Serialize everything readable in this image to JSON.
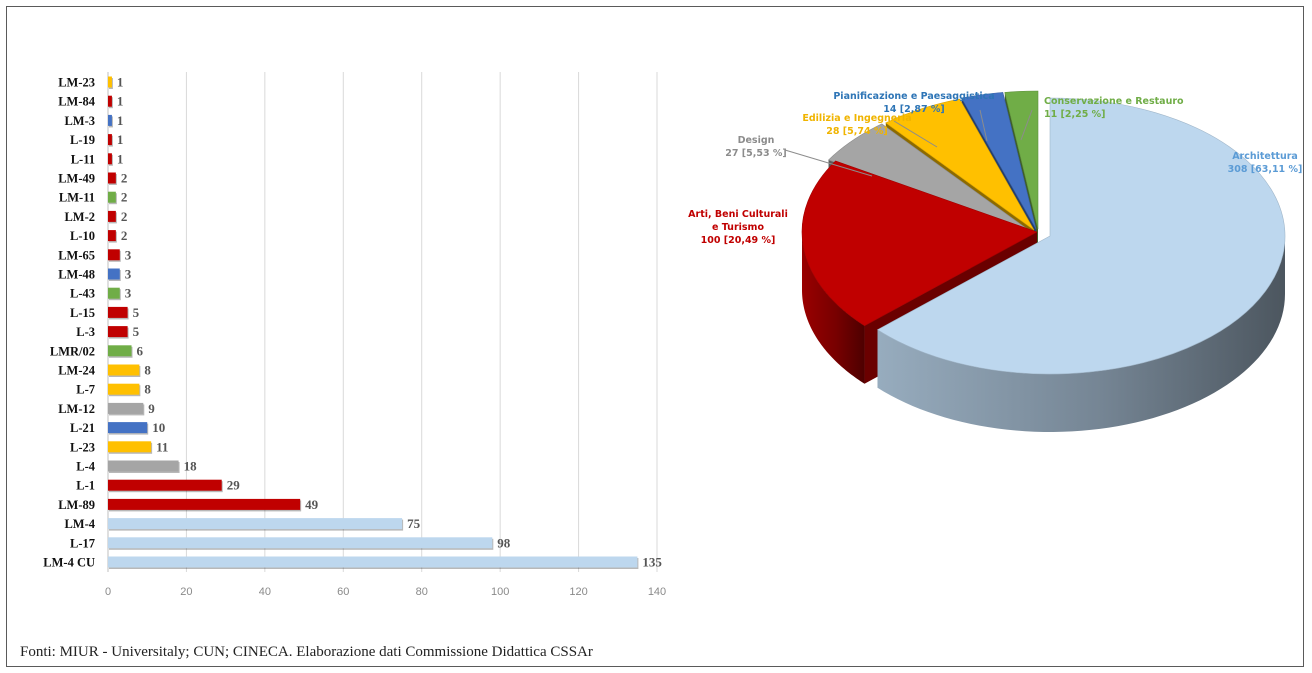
{
  "source_note": "Fonti: MIUR - Universitaly; CUN; CINECA. Elaborazione dati Commissione Didattica CSSAr",
  "colors": {
    "architettura": "#bdd7ee",
    "arti": "#c00000",
    "design": "#a5a5a5",
    "edilizia": "#ffc000",
    "pianificazione": "#4472c4",
    "conservazione": "#70ad47"
  },
  "chart_data": [
    {
      "type": "bar",
      "orientation": "horizontal",
      "categories": [
        "LM-23",
        "LM-84",
        "LM-3",
        "L-19",
        "L-11",
        "LM-49",
        "LM-11",
        "LM-2",
        "L-10",
        "LM-65",
        "LM-48",
        "L-43",
        "L-15",
        "L-3",
        "LMR/02",
        "LM-24",
        "L-7",
        "LM-12",
        "L-21",
        "L-23",
        "L-4",
        "L-1",
        "LM-89",
        "LM-4",
        "L-17",
        "LM-4 CU"
      ],
      "values": [
        1,
        1,
        1,
        1,
        1,
        2,
        2,
        2,
        2,
        3,
        3,
        3,
        5,
        5,
        6,
        8,
        8,
        9,
        10,
        11,
        18,
        29,
        49,
        75,
        98,
        135
      ],
      "groups": [
        "edilizia",
        "arti",
        "pianificazione",
        "arti",
        "arti",
        "arti",
        "conservazione",
        "arti",
        "arti",
        "arti",
        "pianificazione",
        "conservazione",
        "arti",
        "arti",
        "conservazione",
        "edilizia",
        "edilizia",
        "design",
        "pianificazione",
        "edilizia",
        "design",
        "arti",
        "arti",
        "architettura",
        "architettura",
        "architettura"
      ],
      "xlim": [
        0,
        140
      ],
      "xticks": [
        0,
        20,
        40,
        60,
        80,
        100,
        120,
        140
      ],
      "grid": true
    },
    {
      "type": "pie",
      "style": "3d-exploded",
      "slices": [
        {
          "key": "architettura",
          "label_lines": [
            "Architettura"
          ],
          "value": 308,
          "value_label": "308 [63,11 %]",
          "percent": 63.11
        },
        {
          "key": "arti",
          "label_lines": [
            "Arti, Beni Culturali",
            "e Turismo"
          ],
          "value": 100,
          "value_label": "100 [20,49 %]",
          "percent": 20.49
        },
        {
          "key": "design",
          "label_lines": [
            "Design"
          ],
          "value": 27,
          "value_label": "27 [5,53 %]",
          "percent": 5.53
        },
        {
          "key": "edilizia",
          "label_lines": [
            "Edilizia e Ingegneria"
          ],
          "value": 28,
          "value_label": "28 [5,74 %]",
          "percent": 5.74
        },
        {
          "key": "pianificazione",
          "label_lines": [
            "Pianificazione e Paesaggistica"
          ],
          "value": 14,
          "value_label": "14 [2,87 %]",
          "percent": 2.87
        },
        {
          "key": "conservazione",
          "label_lines": [
            "Conservazione e Restauro"
          ],
          "value": 11,
          "value_label": "11 [2,25 %]",
          "percent": 2.25
        }
      ]
    }
  ]
}
